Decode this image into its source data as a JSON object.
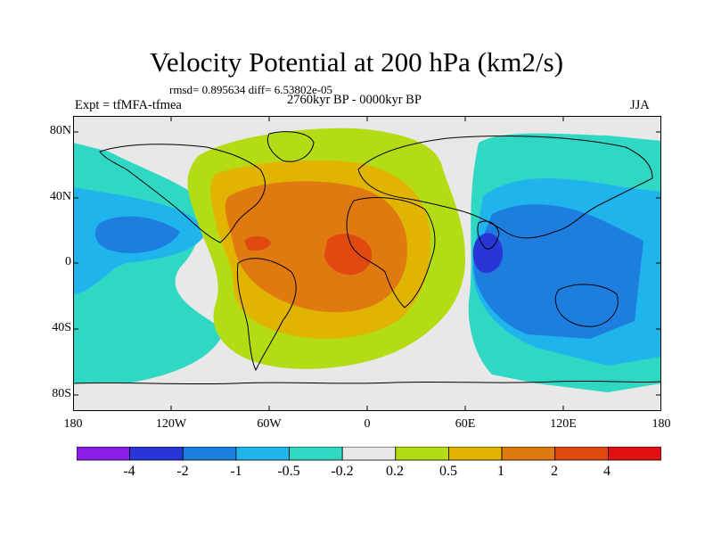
{
  "header": {
    "title": "Velocity Potential at 200 hPa (km2/s)",
    "stats": "rmsd= 0.895634 diff= 6.53802e-05",
    "experiment": "Expt = tfMFA-tfmea",
    "period": "2760kyr BP - 0000kyr BP",
    "season": "JJA"
  },
  "axes": {
    "y_ticks": [
      "80N",
      "40N",
      "0",
      "40S",
      "80S"
    ],
    "x_ticks": [
      "180",
      "120W",
      "60W",
      "0",
      "60E",
      "120E",
      "180"
    ]
  },
  "colorbar": {
    "labels": [
      "-4",
      "-2",
      "-1",
      "-0.5",
      "-0.2",
      "0.2",
      "0.5",
      "1",
      "2",
      "4"
    ],
    "colors": [
      "#8a1ee6",
      "#2836d8",
      "#1e7ee0",
      "#20b4ec",
      "#30d8c4",
      "#e8e8e8",
      "#b4dc14",
      "#e0b400",
      "#e07a10",
      "#e04a10",
      "#e01010"
    ]
  },
  "map": {
    "projection": "cylindrical equidistant",
    "lon_range": [
      -180,
      180
    ],
    "lat_range": [
      -90,
      90
    ],
    "colors": {
      "neutral": "#e8e8e8",
      "lightgreen_positive": "#b4dc14",
      "yellow_positive": "#e0b400",
      "orange_positive": "#e07a10",
      "red_positive": "#e04a10",
      "teal_negative": "#30d8c4",
      "cyan_negative": "#20b4ec",
      "blue_negative": "#1e7ee0",
      "darkblue_negative": "#2836d8",
      "coastline": "#000000"
    }
  }
}
